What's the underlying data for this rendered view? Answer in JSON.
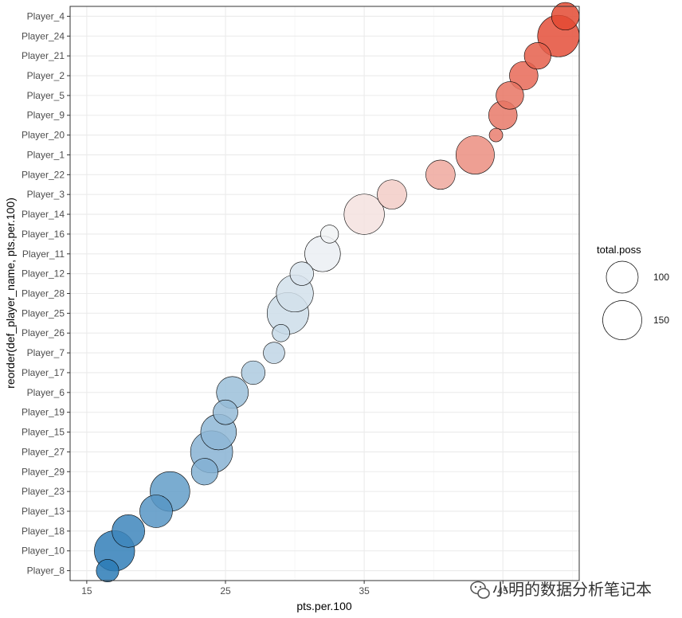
{
  "chart_data": {
    "type": "scatter",
    "xlabel": "pts.per.100",
    "ylabel": "reorder(def_player_name, pts.per.100)",
    "xlim": [
      13.8,
      50.5
    ],
    "x_ticks": [
      15,
      25,
      35,
      45
    ],
    "grid": true,
    "legend": {
      "title": "total.poss",
      "placement": "right",
      "entries": [
        {
          "value": 100,
          "label": "100"
        },
        {
          "value": 150,
          "label": "150"
        }
      ]
    },
    "colors": {
      "low": "#2c7bb6",
      "mid": "#f7f7f7",
      "high": "#e34a33"
    },
    "points": [
      {
        "name": "Player_8",
        "x": 16.5,
        "size": 50
      },
      {
        "name": "Player_10",
        "x": 17.0,
        "size": 160
      },
      {
        "name": "Player_18",
        "x": 18.0,
        "size": 105
      },
      {
        "name": "Player_13",
        "x": 20.0,
        "size": 105
      },
      {
        "name": "Player_23",
        "x": 21.0,
        "size": 155
      },
      {
        "name": "Player_29",
        "x": 23.5,
        "size": 70
      },
      {
        "name": "Player_27",
        "x": 24.0,
        "size": 175
      },
      {
        "name": "Player_15",
        "x": 24.5,
        "size": 125
      },
      {
        "name": "Player_19",
        "x": 25.0,
        "size": 60
      },
      {
        "name": "Player_6",
        "x": 25.5,
        "size": 100
      },
      {
        "name": "Player_17",
        "x": 27.0,
        "size": 55
      },
      {
        "name": "Player_7",
        "x": 28.5,
        "size": 45
      },
      {
        "name": "Player_26",
        "x": 29.0,
        "size": 30
      },
      {
        "name": "Player_25",
        "x": 29.5,
        "size": 170
      },
      {
        "name": "Player_28",
        "x": 30.0,
        "size": 135
      },
      {
        "name": "Player_12",
        "x": 30.5,
        "size": 55
      },
      {
        "name": "Player_11",
        "x": 32.0,
        "size": 125
      },
      {
        "name": "Player_16",
        "x": 32.5,
        "size": 32
      },
      {
        "name": "Player_14",
        "x": 35.0,
        "size": 160
      },
      {
        "name": "Player_3",
        "x": 37.0,
        "size": 85
      },
      {
        "name": "Player_22",
        "x": 40.5,
        "size": 85
      },
      {
        "name": "Player_1",
        "x": 43.0,
        "size": 145
      },
      {
        "name": "Player_20",
        "x": 44.5,
        "size": 18
      },
      {
        "name": "Player_9",
        "x": 45.0,
        "size": 80
      },
      {
        "name": "Player_5",
        "x": 45.5,
        "size": 75
      },
      {
        "name": "Player_2",
        "x": 46.5,
        "size": 80
      },
      {
        "name": "Player_21",
        "x": 47.5,
        "size": 70
      },
      {
        "name": "Player_24",
        "x": 49.0,
        "size": 170
      },
      {
        "name": "Player_4",
        "x": 49.5,
        "size": 75
      }
    ]
  },
  "watermark": {
    "icon": "wechat-icon",
    "text": "小明的数据分析笔记本"
  }
}
